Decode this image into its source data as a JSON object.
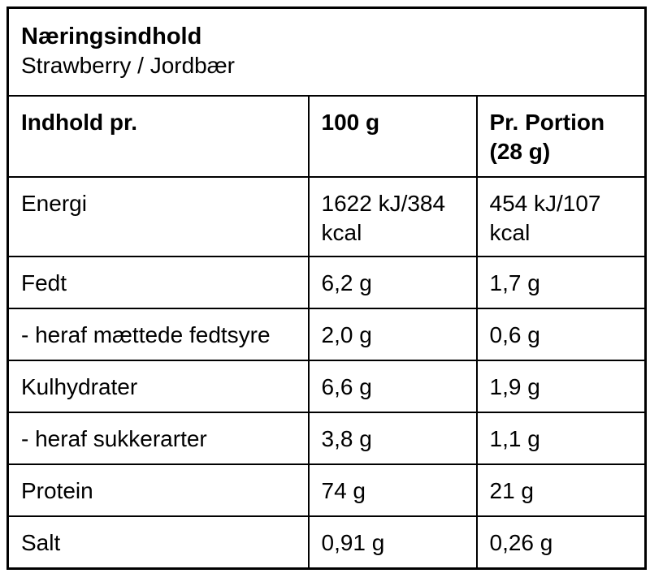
{
  "label": {
    "title": "Næringsindhold",
    "subtitle": "Strawberry / Jordbær"
  },
  "columns": {
    "nutrient": "Indhold pr.",
    "per_100g": "100 g",
    "per_portion": "Pr. Portion (28 g)"
  },
  "rows": [
    {
      "label": "Energi",
      "per_100g": "1622 kJ/384 kcal",
      "per_portion": "454 kJ/107 kcal"
    },
    {
      "label": "Fedt",
      "per_100g": "6,2 g",
      "per_portion": "1,7 g"
    },
    {
      "label": "- heraf mættede fedtsyre",
      "per_100g": "2,0 g",
      "per_portion": "0,6 g"
    },
    {
      "label": "Kulhydrater",
      "per_100g": "6,6 g",
      "per_portion": "1,9 g"
    },
    {
      "label": "- heraf sukkerarter",
      "per_100g": "3,8 g",
      "per_portion": "1,1 g"
    },
    {
      "label": "Protein",
      "per_100g": "74 g",
      "per_portion": "21 g"
    },
    {
      "label": "Salt",
      "per_100g": "0,91 g",
      "per_portion": "0,26 g"
    }
  ],
  "colors": {
    "border": "#000000",
    "text": "#000000",
    "background": "#ffffff"
  }
}
